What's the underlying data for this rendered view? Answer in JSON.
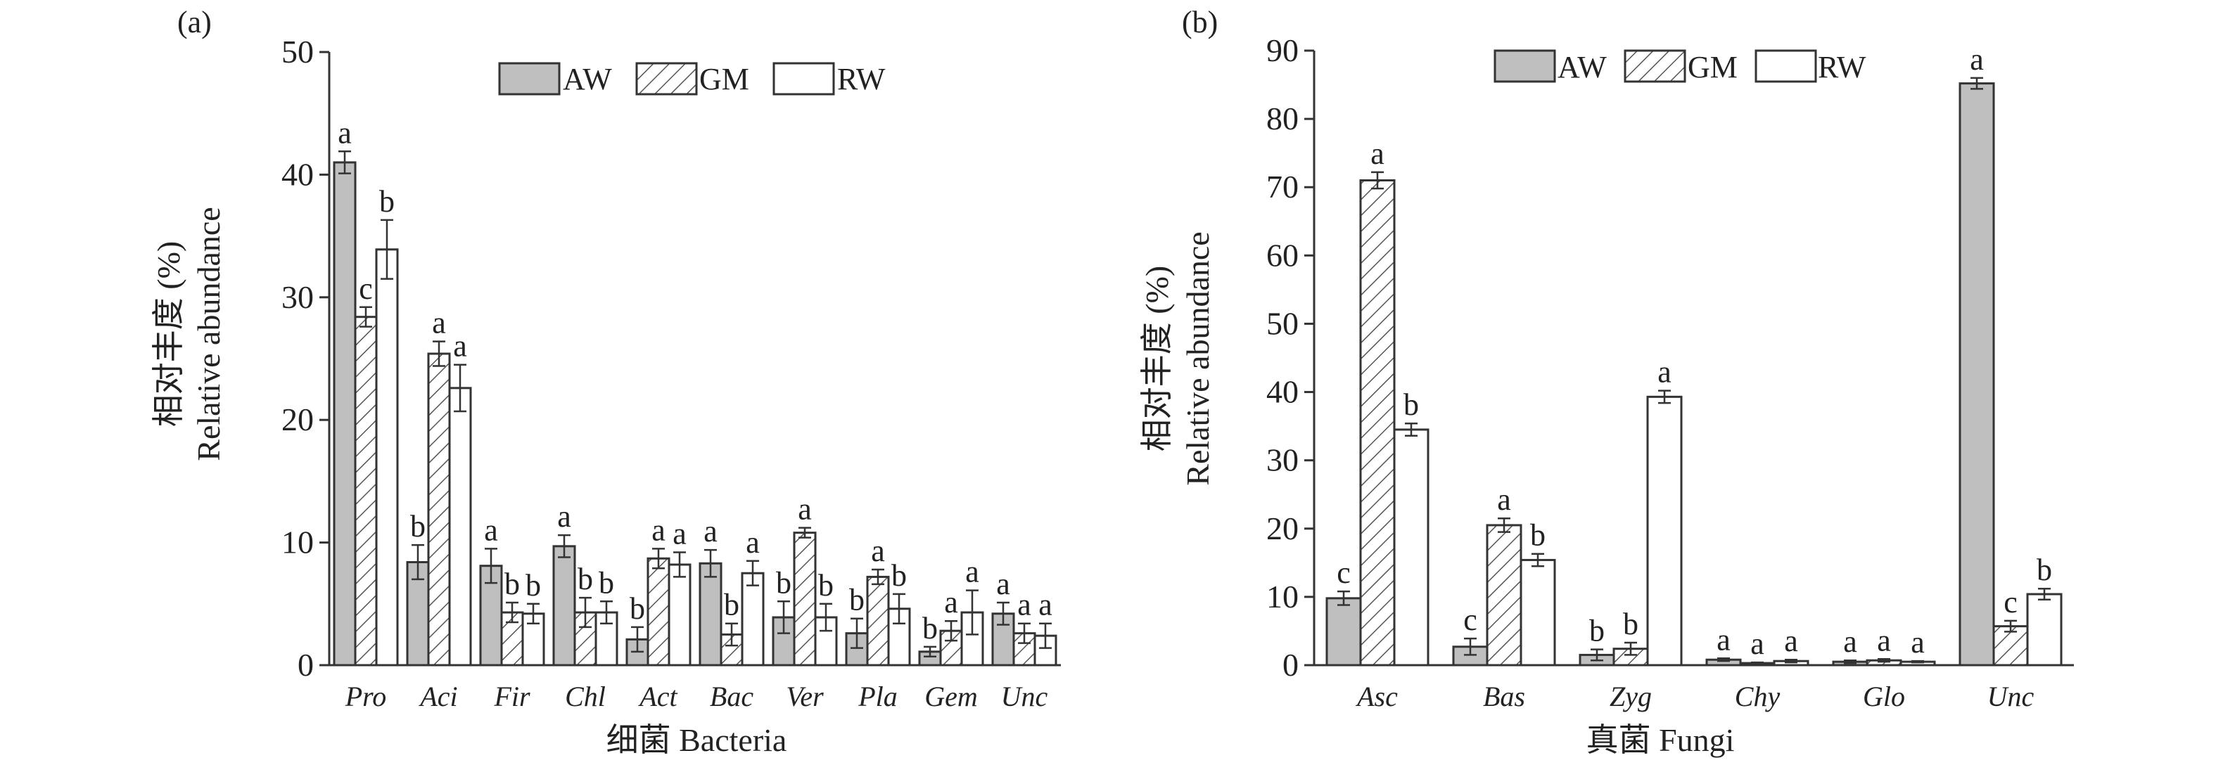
{
  "colors": {
    "AW": "#bfbfbf",
    "GM_hatch": "#555555",
    "RW": "#ffffff",
    "stroke": "#333333"
  },
  "chart_data": [
    {
      "type": "bar",
      "panel_label": "(a)",
      "xlabel": "细菌 Bacteria",
      "ylabel_zh": "相对丰度 (%)",
      "ylabel_en": "Relative abundance",
      "ylim": [
        0,
        50
      ],
      "yticks": [
        0,
        10,
        20,
        30,
        40,
        50
      ],
      "legend_position": "top-right",
      "categories": [
        "Pro",
        "Aci",
        "Fir",
        "Chl",
        "Act",
        "Bac",
        "Ver",
        "Pla",
        "Gem",
        "Unc"
      ],
      "series": [
        {
          "name": "AW",
          "values": [
            41.0,
            8.4,
            8.1,
            9.7,
            2.1,
            8.3,
            3.9,
            2.6,
            1.1,
            4.2
          ],
          "errors": [
            0.9,
            1.4,
            1.4,
            0.9,
            1.0,
            1.1,
            1.3,
            1.2,
            0.4,
            0.9
          ],
          "letters": [
            "a",
            "b",
            "a",
            "a",
            "b",
            "a",
            "b",
            "b",
            "b",
            "a"
          ]
        },
        {
          "name": "GM",
          "values": [
            28.4,
            25.4,
            4.3,
            4.3,
            8.7,
            2.5,
            10.8,
            7.2,
            2.8,
            2.6
          ],
          "errors": [
            0.8,
            1.0,
            0.8,
            1.2,
            0.8,
            0.9,
            0.4,
            0.6,
            0.8,
            0.8
          ],
          "letters": [
            "c",
            "a",
            "b",
            "b",
            "a",
            "b",
            "a",
            "a",
            "a",
            "a"
          ]
        },
        {
          "name": "RW",
          "values": [
            33.9,
            22.6,
            4.2,
            4.3,
            8.2,
            7.5,
            3.9,
            4.6,
            4.3,
            2.4
          ],
          "errors": [
            2.4,
            1.9,
            0.8,
            0.9,
            1.0,
            1.0,
            1.1,
            1.2,
            1.8,
            1.0
          ],
          "letters": [
            "b",
            "a",
            "b",
            "b",
            "a",
            "a",
            "b",
            "b",
            "a",
            "a"
          ]
        }
      ]
    },
    {
      "type": "bar",
      "panel_label": "(b)",
      "xlabel": "真菌 Fungi",
      "ylabel_zh": "相对丰度 (%)",
      "ylabel_en": "Relative abundance",
      "ylim": [
        0,
        90
      ],
      "yticks": [
        0,
        10,
        20,
        30,
        40,
        50,
        60,
        70,
        80,
        90
      ],
      "legend_position": "top-left",
      "categories": [
        "Asc",
        "Bas",
        "Zyg",
        "Chy",
        "Glo",
        "Unc"
      ],
      "series": [
        {
          "name": "AW",
          "values": [
            9.8,
            2.7,
            1.5,
            0.8,
            0.5,
            85.2
          ],
          "errors": [
            1.0,
            1.2,
            0.8,
            0.2,
            0.2,
            0.8
          ],
          "letters": [
            "c",
            "c",
            "b",
            "a",
            "a",
            "a"
          ]
        },
        {
          "name": "GM",
          "values": [
            71.0,
            20.5,
            2.4,
            0.3,
            0.7,
            5.7
          ],
          "errors": [
            1.2,
            1.0,
            0.9,
            0.1,
            0.2,
            0.8
          ],
          "letters": [
            "a",
            "a",
            "b",
            "a",
            "a",
            "c"
          ]
        },
        {
          "name": "RW",
          "values": [
            34.5,
            15.4,
            39.3,
            0.6,
            0.5,
            10.4
          ],
          "errors": [
            0.9,
            0.9,
            0.9,
            0.2,
            0.1,
            0.8
          ],
          "letters": [
            "b",
            "b",
            "a",
            "a",
            "a",
            "b"
          ]
        }
      ]
    }
  ]
}
